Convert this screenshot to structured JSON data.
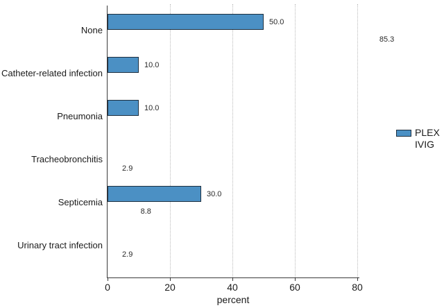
{
  "chart_data": {
    "type": "bar",
    "orientation": "horizontal",
    "title": "",
    "xlabel": "percent",
    "ylabel": "",
    "xlim": [
      0,
      80
    ],
    "x_ticks": [
      0,
      20,
      40,
      60,
      80
    ],
    "grid": "vertical-dotted",
    "legend_position": "right-middle",
    "categories": [
      "None",
      "Catheter-related infection",
      "Pneumonia",
      "Tracheobronchitis",
      "Septicemia",
      "Urinary tract infection"
    ],
    "series": [
      {
        "name": "PLEX",
        "color": "#4b90c4",
        "values": [
          50.0,
          10.0,
          10.0,
          null,
          30.0,
          null
        ]
      },
      {
        "name": "IVIG",
        "color": "#ffffff",
        "values": [
          85.3,
          null,
          null,
          2.9,
          8.8,
          2.9
        ]
      }
    ],
    "value_labels": [
      [
        "50.0",
        "10.0",
        "10.0",
        null,
        "30.0",
        null
      ],
      [
        "85.3",
        null,
        null,
        "2.9",
        "8.8",
        "2.9"
      ]
    ]
  },
  "legend": {
    "items": [
      {
        "label": "PLEX",
        "swatch": "#4b90c4"
      },
      {
        "label": "IVIG",
        "swatch": "#ffffff"
      }
    ]
  },
  "colors": {
    "bar_fill": "#4b90c4",
    "bar_border": "#1d2f3f",
    "grid": "#b9b9b9",
    "axis": "#3a3a3a",
    "text": "#1a1a1a"
  }
}
